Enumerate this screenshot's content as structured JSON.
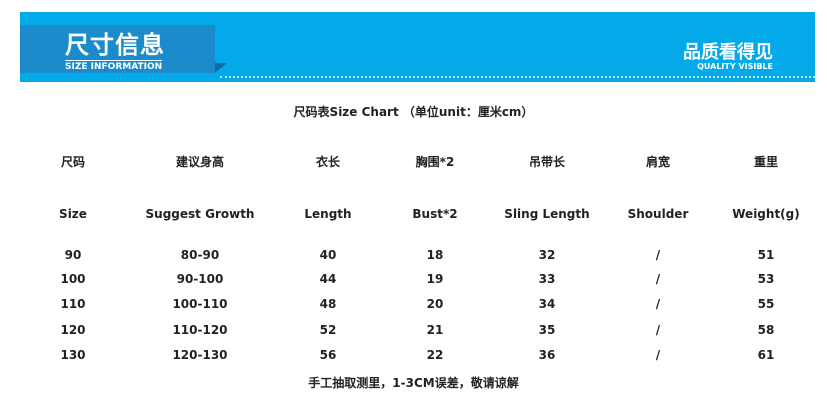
{
  "banner": {
    "title": "尺寸信息",
    "subtitle": "SIZE INFORMATION",
    "right_title": "品质看得见",
    "right_subtitle": "QUALITY VISIBLE",
    "colors": {
      "banner": "#04a9ea",
      "box": "#1b8bcc"
    }
  },
  "chart_title": "尺码表Size Chart （单位unit：厘米cm）",
  "table": {
    "headers_cn": [
      "尺码",
      "建议身高",
      "衣长",
      "胸围*2",
      "吊带长",
      "肩宽",
      "重里"
    ],
    "headers_en": [
      "Size",
      "Suggest Growth",
      "Length",
      "Bust*2",
      "Sling Length",
      "Shoulder",
      "Weight(g)"
    ],
    "rows": [
      [
        "90",
        "80-90",
        "40",
        "18",
        "32",
        "/",
        "51"
      ],
      [
        "100",
        "90-100",
        "44",
        "19",
        "33",
        "/",
        "53"
      ],
      [
        "110",
        "100-110",
        "48",
        "20",
        "34",
        "/",
        "55"
      ],
      [
        "120",
        "110-120",
        "52",
        "21",
        "35",
        "/",
        "58"
      ],
      [
        "130",
        "120-130",
        "56",
        "22",
        "36",
        "/",
        "61"
      ]
    ]
  },
  "footer": "手工抽取测里，1-3CM误差，敬请谅解"
}
